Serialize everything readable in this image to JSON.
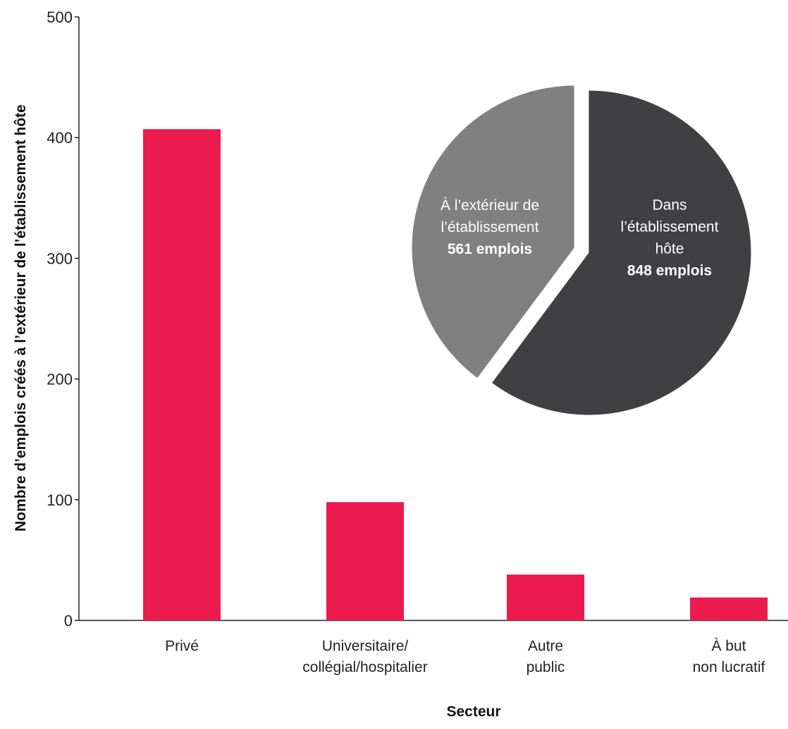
{
  "chart_data": [
    {
      "type": "bar",
      "categories": [
        [
          "Privé"
        ],
        [
          "Universitaire/",
          "collégial/hospitalier"
        ],
        [
          "Autre",
          "public"
        ],
        [
          "À but",
          "non lucratif"
        ]
      ],
      "values": [
        407,
        98,
        38,
        19
      ],
      "xlabel": "Secteur",
      "ylabel": "Nombre d’emplois créés à l’extérieur de l’établissement hôte",
      "ylim": [
        0,
        500
      ],
      "yticks": [
        0,
        100,
        200,
        300,
        400,
        500
      ],
      "grid": false,
      "bar_color": "#ec1b4f"
    },
    {
      "type": "pie",
      "slices": [
        {
          "label_lines": [
            "Dans",
            "l’établissement",
            "hôte"
          ],
          "value_label": "848 emplois",
          "value": 848,
          "color": "#404043",
          "text_color": "#ffffff"
        },
        {
          "label_lines": [
            "À l’extérieur de",
            "l’établissement"
          ],
          "value_label": "561 emplois",
          "value": 561,
          "color": "#808080",
          "text_color": "#ffffff"
        }
      ]
    }
  ],
  "colors": {
    "axis": "#222222",
    "text": "#222222"
  }
}
